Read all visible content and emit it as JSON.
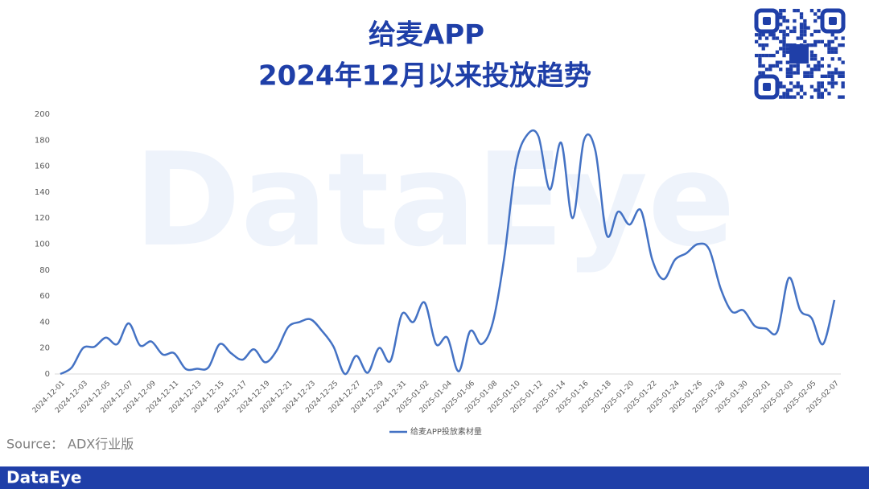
{
  "chart_data": {
    "type": "line",
    "title": "给麦APP",
    "subtitle": "2024年12月以来投放趋势",
    "source": "Source： ADX行业版",
    "brand": "DataEye",
    "categories": [
      "2024-12-01",
      null,
      "2024-12-03",
      null,
      "2024-12-05",
      null,
      "2024-12-07",
      null,
      "2024-12-09",
      null,
      "2024-12-11",
      null,
      "2024-12-13",
      null,
      "2024-12-15",
      null,
      "2024-12-17",
      null,
      "2024-12-19",
      null,
      "2024-12-21",
      null,
      "2024-12-23",
      null,
      "2024-12-25",
      null,
      "2024-12-27",
      null,
      "2024-12-29",
      null,
      "2024-12-31",
      null,
      "2025-01-02",
      null,
      "2025-01-04",
      null,
      "2025-01-06",
      null,
      "2025-01-08",
      null,
      "2025-01-10",
      null,
      "2025-01-12",
      null,
      "2025-01-14",
      null,
      "2025-01-16",
      null,
      "2025-01-18",
      null,
      "2025-01-20",
      null,
      "2025-01-22",
      null,
      "2025-01-24",
      null,
      "2025-01-26",
      null,
      "2025-01-28",
      null,
      "2025-01-30",
      null,
      "2025-02-01",
      null,
      "2025-02-03",
      null,
      "2025-02-05",
      null,
      "2025-02-07"
    ],
    "series": [
      {
        "name": "给麦APP投放素材量",
        "color": "#4472c4",
        "values": [
          0,
          5,
          20,
          21,
          28,
          23,
          39,
          22,
          25,
          15,
          16,
          4,
          4,
          5,
          23,
          16,
          11,
          19,
          9,
          18,
          36,
          40,
          42,
          33,
          21,
          0,
          14,
          1,
          20,
          10,
          46,
          40,
          55,
          23,
          28,
          2,
          33,
          23,
          40,
          90,
          160,
          184,
          183,
          142,
          178,
          120,
          180,
          172,
          107,
          125,
          115,
          126,
          88,
          73,
          88,
          93,
          100,
          96,
          66,
          48,
          49,
          37,
          35,
          33,
          74,
          49,
          43,
          23,
          57
        ]
      }
    ],
    "ylim": [
      0,
      200
    ],
    "yticks": [
      0,
      20,
      40,
      60,
      80,
      100,
      120,
      140,
      160,
      180,
      200
    ],
    "grid": false,
    "legend": "bottom"
  }
}
